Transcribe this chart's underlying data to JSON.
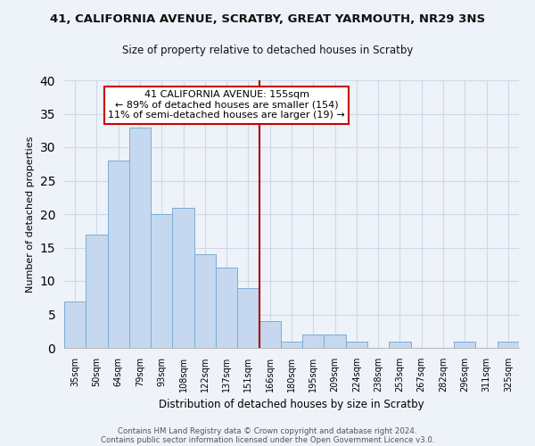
{
  "title": "41, CALIFORNIA AVENUE, SCRATBY, GREAT YARMOUTH, NR29 3NS",
  "subtitle": "Size of property relative to detached houses in Scratby",
  "xlabel": "Distribution of detached houses by size in Scratby",
  "ylabel": "Number of detached properties",
  "footer1": "Contains HM Land Registry data © Crown copyright and database right 2024.",
  "footer2": "Contains public sector information licensed under the Open Government Licence v3.0.",
  "bar_labels": [
    "35sqm",
    "50sqm",
    "64sqm",
    "79sqm",
    "93sqm",
    "108sqm",
    "122sqm",
    "137sqm",
    "151sqm",
    "166sqm",
    "180sqm",
    "195sqm",
    "209sqm",
    "224sqm",
    "238sqm",
    "253sqm",
    "267sqm",
    "282sqm",
    "296sqm",
    "311sqm",
    "325sqm"
  ],
  "bar_values": [
    7,
    17,
    28,
    33,
    20,
    21,
    14,
    12,
    9,
    4,
    1,
    2,
    2,
    1,
    0,
    1,
    0,
    0,
    1,
    0,
    1
  ],
  "bar_color": "#c5d8f0",
  "bar_edge_color": "#7aadd4",
  "ylim": [
    0,
    40
  ],
  "yticks": [
    0,
    5,
    10,
    15,
    20,
    25,
    30,
    35,
    40
  ],
  "vline_x_idx": 8,
  "vline_color": "#aa0000",
  "annotation_title": "41 CALIFORNIA AVENUE: 155sqm",
  "annotation_line1": "← 89% of detached houses are smaller (154)",
  "annotation_line2": "11% of semi-detached houses are larger (19) →",
  "annotation_box_color": "#ffffff",
  "annotation_box_edge": "#cc0000",
  "bg_color": "#eef2f9",
  "grid_color": "#d0d8e8"
}
